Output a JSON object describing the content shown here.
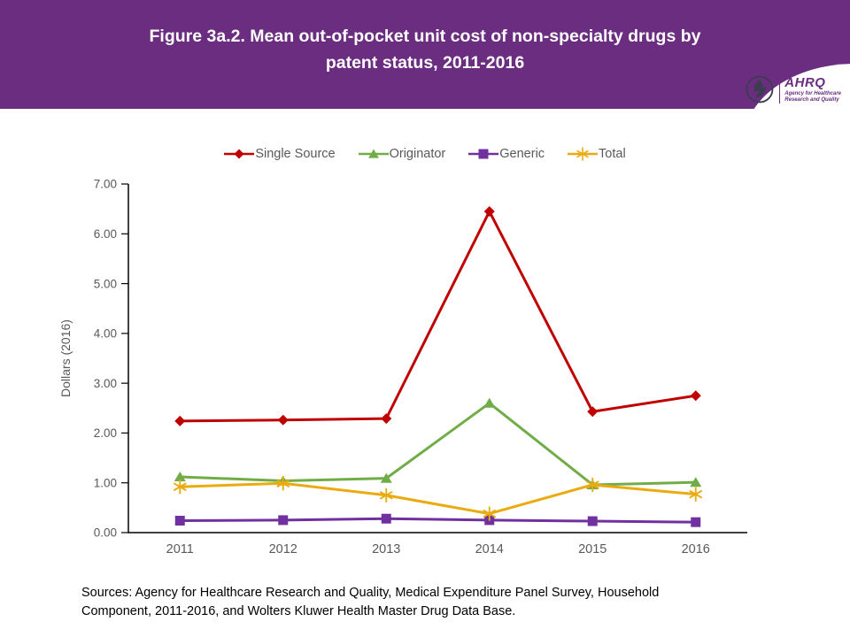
{
  "header": {
    "title_line1": "Figure 3a.2. Mean out-of-pocket unit cost of non-specialty drugs by",
    "title_line2": "patent status, 2011-2016",
    "bg_color": "#6B2D80",
    "logo": {
      "abbr": "AHRQ",
      "tagline1": "Agency for Healthcare",
      "tagline2": "Research and Quality",
      "icon": "hhs-eagle-icon"
    }
  },
  "chart_data": {
    "type": "line",
    "categories": [
      "2011",
      "2012",
      "2013",
      "2014",
      "2015",
      "2016"
    ],
    "series": [
      {
        "name": "Single Source",
        "marker": "diamond",
        "color": "#C00000",
        "values": [
          2.24,
          2.26,
          2.29,
          6.45,
          2.43,
          2.75
        ]
      },
      {
        "name": "Originator",
        "marker": "triangle",
        "color": "#70AD47",
        "values": [
          1.12,
          1.04,
          1.09,
          2.6,
          0.96,
          1.01
        ]
      },
      {
        "name": "Generic",
        "marker": "square",
        "color": "#7030A0",
        "values": [
          0.24,
          0.25,
          0.28,
          0.25,
          0.23,
          0.21
        ]
      },
      {
        "name": "Total",
        "marker": "asterisk",
        "color": "#EAAB10",
        "values": [
          0.92,
          0.99,
          0.75,
          0.38,
          0.96,
          0.77
        ]
      }
    ],
    "title": "",
    "xlabel": "",
    "ylabel": "Dollars (2016)",
    "ylim": [
      0,
      7
    ],
    "yticks": [
      "0.00",
      "1.00",
      "2.00",
      "3.00",
      "4.00",
      "5.00",
      "6.00",
      "7.00"
    ],
    "grid": false,
    "legend_position": "top",
    "axis_color": "#000000",
    "tick_label_color": "#595959"
  },
  "footnote": {
    "line1": "Sources: Agency for Healthcare Research and Quality, Medical Expenditure Panel Survey, Household",
    "line2": "Component, 2011-2016, and Wolters Kluwer Health Master Drug Data Base."
  }
}
